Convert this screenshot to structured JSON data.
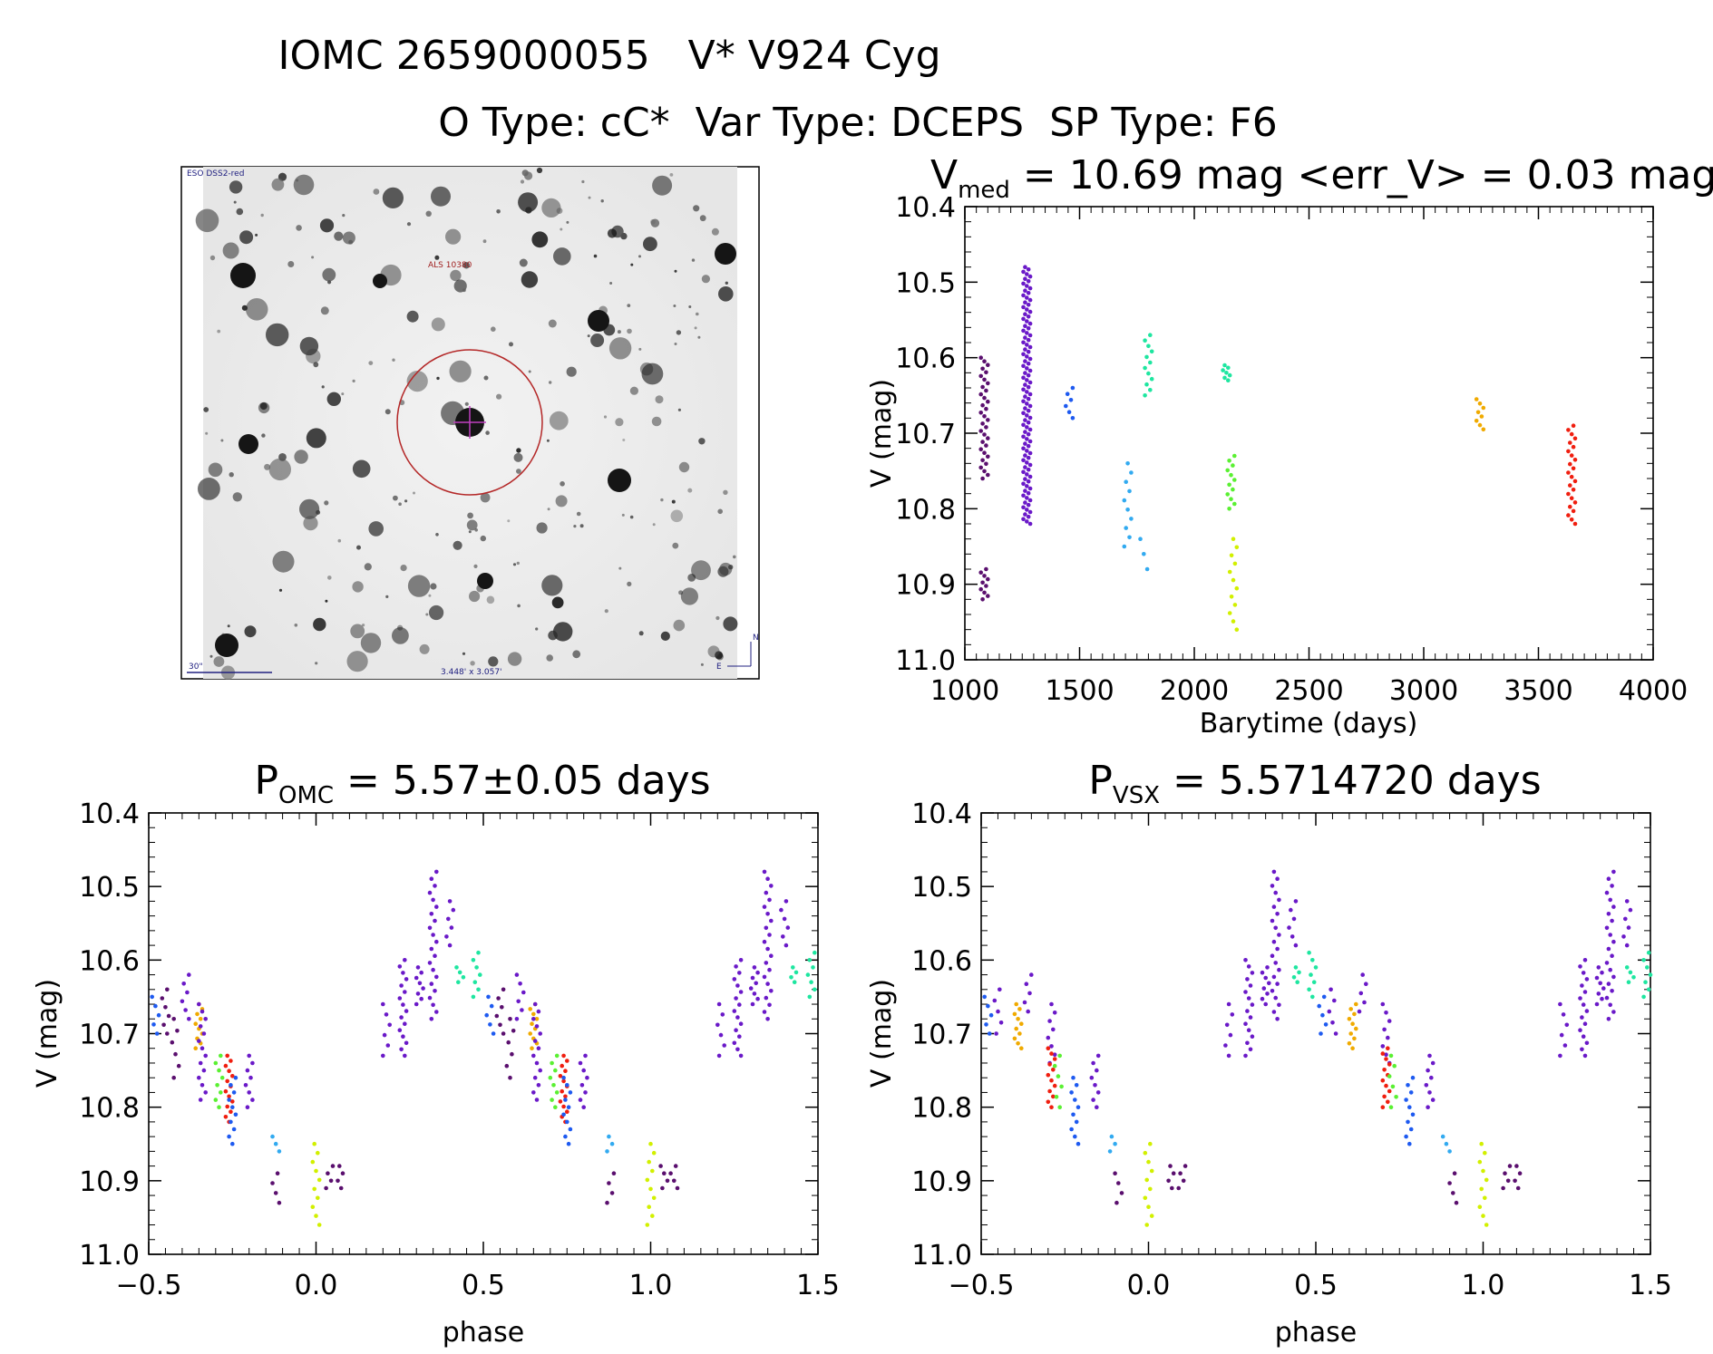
{
  "header": {
    "title_line1": "IOMC 2659000055   V* V924 Cyg",
    "title_line2": "O Type: cC*  Var Type: DCEPS  SP Type: F6"
  },
  "sky_image": {
    "survey_label": "ESO DSS2-red",
    "object_label": "ALS 10380",
    "scale_label": "30\"",
    "size_label": "3.448' x 3.057'",
    "north_label": "N",
    "east_label": "E"
  },
  "colors": {
    "c0": "#5a0f6e",
    "c1": "#6a19c8",
    "c2": "#1e5af0",
    "c3": "#32aaf0",
    "c4": "#1ee6a0",
    "c5": "#5af032",
    "c6": "#d2f000",
    "c7": "#f0aa00",
    "c8": "#f01e0f"
  },
  "chart_data": [
    {
      "type": "scatter",
      "id": "lightcurve",
      "title_main": "V",
      "title_sub": "med",
      "title_rest": " = 10.69 mag <err_V> = 0.03 mag",
      "xlabel": "Barytime (days)",
      "ylabel": "V (mag)",
      "xlim": [
        1000,
        4000
      ],
      "ylim": [
        11.0,
        10.4
      ],
      "xticks": [
        "1000",
        "1500",
        "2000",
        "2500",
        "3000",
        "3500",
        "4000"
      ],
      "xtick_values": [
        1000,
        1500,
        2000,
        2500,
        3000,
        3500,
        4000
      ],
      "yticks": [
        "10.4",
        "10.5",
        "10.6",
        "10.7",
        "10.8",
        "10.9",
        "11.0"
      ],
      "ytick_values": [
        10.4,
        10.5,
        10.6,
        10.7,
        10.8,
        10.9,
        11.0
      ],
      "groups": [
        {
          "color": "c0",
          "x": 1085,
          "ymin": 10.6,
          "ymax": 10.76,
          "n": 34
        },
        {
          "color": "c0",
          "x": 1085,
          "ymin": 10.88,
          "ymax": 10.92,
          "n": 10
        },
        {
          "color": "c1",
          "x": 1270,
          "ymin": 10.48,
          "ymax": 10.82,
          "n": 110
        },
        {
          "color": "c2",
          "x": 1455,
          "ymin": 10.64,
          "ymax": 10.68,
          "n": 6
        },
        {
          "color": "c3",
          "x": 1710,
          "ymin": 10.74,
          "ymax": 10.85,
          "n": 10
        },
        {
          "color": "c3",
          "x": 1780,
          "ymin": 10.84,
          "ymax": 10.88,
          "n": 3
        },
        {
          "color": "c4",
          "x": 1800,
          "ymin": 10.57,
          "ymax": 10.65,
          "n": 12
        },
        {
          "color": "c4",
          "x": 2140,
          "ymin": 10.61,
          "ymax": 10.63,
          "n": 7
        },
        {
          "color": "c5",
          "x": 2160,
          "ymin": 10.73,
          "ymax": 10.8,
          "n": 12
        },
        {
          "color": "c6",
          "x": 2170,
          "ymin": 10.84,
          "ymax": 10.96,
          "n": 12
        },
        {
          "color": "c7",
          "x": 3245,
          "ymin": 10.655,
          "ymax": 10.695,
          "n": 8
        },
        {
          "color": "c8",
          "x": 3645,
          "ymin": 10.69,
          "ymax": 10.82,
          "n": 24
        }
      ]
    },
    {
      "type": "scatter",
      "id": "phase_omc",
      "title_main": "P",
      "title_sub": "OMC",
      "title_rest": " = 5.57±0.05 days",
      "xlabel": "phase",
      "ylabel": "V (mag)",
      "xlim": [
        -0.5,
        1.5
      ],
      "ylim": [
        11.0,
        10.4
      ],
      "xticks": [
        "−0.5",
        "0.0",
        "0.5",
        "1.0",
        "1.5"
      ],
      "xtick_values": [
        -0.5,
        0.0,
        0.5,
        1.0,
        1.5
      ],
      "yticks": [
        "10.4",
        "10.5",
        "10.6",
        "10.7",
        "10.8",
        "10.9",
        "11.0"
      ],
      "ytick_values": [
        10.4,
        10.5,
        10.6,
        10.7,
        10.8,
        10.9,
        11.0
      ],
      "groups": [
        {
          "color": "c2",
          "x": -0.48,
          "ymin": 10.65,
          "ymax": 10.7,
          "n": 5
        },
        {
          "color": "c0",
          "x": -0.45,
          "ymin": 10.64,
          "ymax": 10.7,
          "n": 6
        },
        {
          "color": "c0",
          "x": -0.42,
          "ymin": 10.68,
          "ymax": 10.76,
          "n": 6
        },
        {
          "color": "c1",
          "x": -0.39,
          "ymin": 10.62,
          "ymax": 10.68,
          "n": 6
        },
        {
          "color": "c7",
          "x": -0.35,
          "ymin": 10.66,
          "ymax": 10.72,
          "n": 10
        },
        {
          "color": "c1",
          "x": -0.34,
          "ymin": 10.66,
          "ymax": 10.79,
          "n": 14
        },
        {
          "color": "c5",
          "x": -0.29,
          "ymin": 10.73,
          "ymax": 10.8,
          "n": 8
        },
        {
          "color": "c8",
          "x": -0.26,
          "ymin": 10.73,
          "ymax": 10.82,
          "n": 14
        },
        {
          "color": "c2",
          "x": -0.25,
          "ymin": 10.76,
          "ymax": 10.85,
          "n": 10
        },
        {
          "color": "c1",
          "x": -0.2,
          "ymin": 10.73,
          "ymax": 10.8,
          "n": 8
        },
        {
          "color": "c3",
          "x": -0.12,
          "ymin": 10.84,
          "ymax": 10.86,
          "n": 3
        },
        {
          "color": "c0",
          "x": -0.12,
          "ymin": 10.89,
          "ymax": 10.93,
          "n": 4
        },
        {
          "color": "c6",
          "x": 0.0,
          "ymin": 10.85,
          "ymax": 10.96,
          "n": 10
        },
        {
          "color": "c0",
          "x": 0.04,
          "ymin": 10.88,
          "ymax": 10.91,
          "n": 4
        },
        {
          "color": "c0",
          "x": 0.07,
          "ymin": 10.88,
          "ymax": 10.91,
          "n": 4
        },
        {
          "color": "c1",
          "x": 0.21,
          "ymin": 10.66,
          "ymax": 10.73,
          "n": 6
        },
        {
          "color": "c1",
          "x": 0.26,
          "ymin": 10.6,
          "ymax": 10.73,
          "n": 16
        },
        {
          "color": "c1",
          "x": 0.31,
          "ymin": 10.61,
          "ymax": 10.66,
          "n": 8
        },
        {
          "color": "c1",
          "x": 0.35,
          "ymin": 10.48,
          "ymax": 10.68,
          "n": 22
        },
        {
          "color": "c1",
          "x": 0.4,
          "ymin": 10.52,
          "ymax": 10.58,
          "n": 6
        },
        {
          "color": "c4",
          "x": 0.43,
          "ymin": 10.61,
          "ymax": 10.63,
          "n": 4
        },
        {
          "color": "c4",
          "x": 0.48,
          "ymin": 10.59,
          "ymax": 10.65,
          "n": 7
        },
        {
          "color": "c2",
          "x": 0.52,
          "ymin": 10.65,
          "ymax": 10.7,
          "n": 5
        },
        {
          "color": "c0",
          "x": 0.55,
          "ymin": 10.64,
          "ymax": 10.7,
          "n": 6
        },
        {
          "color": "c0",
          "x": 0.58,
          "ymin": 10.68,
          "ymax": 10.76,
          "n": 6
        },
        {
          "color": "c1",
          "x": 0.61,
          "ymin": 10.62,
          "ymax": 10.68,
          "n": 6
        },
        {
          "color": "c7",
          "x": 0.65,
          "ymin": 10.66,
          "ymax": 10.72,
          "n": 10
        },
        {
          "color": "c1",
          "x": 0.66,
          "ymin": 10.66,
          "ymax": 10.79,
          "n": 14
        },
        {
          "color": "c5",
          "x": 0.71,
          "ymin": 10.73,
          "ymax": 10.8,
          "n": 8
        },
        {
          "color": "c8",
          "x": 0.74,
          "ymin": 10.73,
          "ymax": 10.82,
          "n": 14
        },
        {
          "color": "c2",
          "x": 0.75,
          "ymin": 10.76,
          "ymax": 10.85,
          "n": 10
        },
        {
          "color": "c1",
          "x": 0.8,
          "ymin": 10.73,
          "ymax": 10.8,
          "n": 8
        },
        {
          "color": "c3",
          "x": 0.88,
          "ymin": 10.84,
          "ymax": 10.86,
          "n": 3
        },
        {
          "color": "c0",
          "x": 0.88,
          "ymin": 10.89,
          "ymax": 10.93,
          "n": 4
        },
        {
          "color": "c6",
          "x": 1.0,
          "ymin": 10.85,
          "ymax": 10.96,
          "n": 10
        },
        {
          "color": "c0",
          "x": 1.04,
          "ymin": 10.88,
          "ymax": 10.91,
          "n": 4
        },
        {
          "color": "c0",
          "x": 1.07,
          "ymin": 10.88,
          "ymax": 10.91,
          "n": 4
        },
        {
          "color": "c1",
          "x": 1.21,
          "ymin": 10.66,
          "ymax": 10.73,
          "n": 6
        },
        {
          "color": "c1",
          "x": 1.26,
          "ymin": 10.6,
          "ymax": 10.73,
          "n": 16
        },
        {
          "color": "c1",
          "x": 1.31,
          "ymin": 10.61,
          "ymax": 10.66,
          "n": 8
        },
        {
          "color": "c1",
          "x": 1.35,
          "ymin": 10.48,
          "ymax": 10.68,
          "n": 22
        },
        {
          "color": "c1",
          "x": 1.4,
          "ymin": 10.52,
          "ymax": 10.58,
          "n": 6
        },
        {
          "color": "c4",
          "x": 1.43,
          "ymin": 10.61,
          "ymax": 10.63,
          "n": 4
        },
        {
          "color": "c4",
          "x": 1.48,
          "ymin": 10.59,
          "ymax": 10.65,
          "n": 7
        }
      ]
    },
    {
      "type": "scatter",
      "id": "phase_vsx",
      "title_main": "P",
      "title_sub": "VSX",
      "title_rest": " = 5.5714720 days",
      "xlabel": "phase",
      "ylabel": "V (mag)",
      "xlim": [
        -0.5,
        1.5
      ],
      "ylim": [
        11.0,
        10.4
      ],
      "xticks": [
        "−0.5",
        "0.0",
        "0.5",
        "1.0",
        "1.5"
      ],
      "xtick_values": [
        -0.5,
        0.0,
        0.5,
        1.0,
        1.5
      ],
      "yticks": [
        "10.4",
        "10.5",
        "10.6",
        "10.7",
        "10.8",
        "10.9",
        "11.0"
      ],
      "ytick_values": [
        10.4,
        10.5,
        10.6,
        10.7,
        10.8,
        10.9,
        11.0
      ],
      "groups": [
        {
          "color": "c2",
          "x": -0.48,
          "ymin": 10.65,
          "ymax": 10.7,
          "n": 5
        },
        {
          "color": "c1",
          "x": -0.45,
          "ymin": 10.64,
          "ymax": 10.7,
          "n": 5
        },
        {
          "color": "c7",
          "x": -0.39,
          "ymin": 10.66,
          "ymax": 10.72,
          "n": 10
        },
        {
          "color": "c1",
          "x": -0.36,
          "ymin": 10.62,
          "ymax": 10.67,
          "n": 5
        },
        {
          "color": "c1",
          "x": -0.29,
          "ymin": 10.66,
          "ymax": 10.74,
          "n": 8
        },
        {
          "color": "c8",
          "x": -0.29,
          "ymin": 10.72,
          "ymax": 10.8,
          "n": 12
        },
        {
          "color": "c5",
          "x": -0.27,
          "ymin": 10.73,
          "ymax": 10.8,
          "n": 6
        },
        {
          "color": "c2",
          "x": -0.22,
          "ymin": 10.76,
          "ymax": 10.85,
          "n": 10
        },
        {
          "color": "c1",
          "x": -0.16,
          "ymin": 10.73,
          "ymax": 10.8,
          "n": 8
        },
        {
          "color": "c3",
          "x": -0.11,
          "ymin": 10.84,
          "ymax": 10.86,
          "n": 3
        },
        {
          "color": "c0",
          "x": -0.09,
          "ymin": 10.89,
          "ymax": 10.93,
          "n": 4
        },
        {
          "color": "c6",
          "x": 0.0,
          "ymin": 10.85,
          "ymax": 10.96,
          "n": 10
        },
        {
          "color": "c0",
          "x": 0.07,
          "ymin": 10.88,
          "ymax": 10.91,
          "n": 4
        },
        {
          "color": "c0",
          "x": 0.1,
          "ymin": 10.88,
          "ymax": 10.91,
          "n": 4
        },
        {
          "color": "c1",
          "x": 0.24,
          "ymin": 10.66,
          "ymax": 10.73,
          "n": 6
        },
        {
          "color": "c1",
          "x": 0.3,
          "ymin": 10.6,
          "ymax": 10.73,
          "n": 16
        },
        {
          "color": "c1",
          "x": 0.35,
          "ymin": 10.61,
          "ymax": 10.66,
          "n": 8
        },
        {
          "color": "c1",
          "x": 0.38,
          "ymin": 10.48,
          "ymax": 10.68,
          "n": 22
        },
        {
          "color": "c1",
          "x": 0.43,
          "ymin": 10.52,
          "ymax": 10.58,
          "n": 6
        },
        {
          "color": "c4",
          "x": 0.44,
          "ymin": 10.61,
          "ymax": 10.63,
          "n": 4
        },
        {
          "color": "c4",
          "x": 0.49,
          "ymin": 10.59,
          "ymax": 10.65,
          "n": 7
        },
        {
          "color": "c2",
          "x": 0.52,
          "ymin": 10.65,
          "ymax": 10.7,
          "n": 5
        },
        {
          "color": "c1",
          "x": 0.55,
          "ymin": 10.64,
          "ymax": 10.7,
          "n": 5
        },
        {
          "color": "c7",
          "x": 0.61,
          "ymin": 10.66,
          "ymax": 10.72,
          "n": 10
        },
        {
          "color": "c1",
          "x": 0.64,
          "ymin": 10.62,
          "ymax": 10.67,
          "n": 5
        },
        {
          "color": "c1",
          "x": 0.71,
          "ymin": 10.66,
          "ymax": 10.74,
          "n": 8
        },
        {
          "color": "c8",
          "x": 0.71,
          "ymin": 10.72,
          "ymax": 10.8,
          "n": 12
        },
        {
          "color": "c5",
          "x": 0.73,
          "ymin": 10.73,
          "ymax": 10.8,
          "n": 6
        },
        {
          "color": "c2",
          "x": 0.78,
          "ymin": 10.76,
          "ymax": 10.85,
          "n": 10
        },
        {
          "color": "c1",
          "x": 0.84,
          "ymin": 10.73,
          "ymax": 10.8,
          "n": 8
        },
        {
          "color": "c3",
          "x": 0.89,
          "ymin": 10.84,
          "ymax": 10.86,
          "n": 3
        },
        {
          "color": "c0",
          "x": 0.91,
          "ymin": 10.89,
          "ymax": 10.93,
          "n": 4
        },
        {
          "color": "c6",
          "x": 1.0,
          "ymin": 10.85,
          "ymax": 10.96,
          "n": 10
        },
        {
          "color": "c0",
          "x": 1.07,
          "ymin": 10.88,
          "ymax": 10.91,
          "n": 4
        },
        {
          "color": "c0",
          "x": 1.1,
          "ymin": 10.88,
          "ymax": 10.91,
          "n": 4
        },
        {
          "color": "c1",
          "x": 1.24,
          "ymin": 10.66,
          "ymax": 10.73,
          "n": 6
        },
        {
          "color": "c1",
          "x": 1.3,
          "ymin": 10.6,
          "ymax": 10.73,
          "n": 16
        },
        {
          "color": "c1",
          "x": 1.35,
          "ymin": 10.61,
          "ymax": 10.66,
          "n": 8
        },
        {
          "color": "c1",
          "x": 1.38,
          "ymin": 10.48,
          "ymax": 10.68,
          "n": 22
        },
        {
          "color": "c1",
          "x": 1.43,
          "ymin": 10.52,
          "ymax": 10.58,
          "n": 6
        },
        {
          "color": "c4",
          "x": 1.44,
          "ymin": 10.61,
          "ymax": 10.63,
          "n": 4
        },
        {
          "color": "c4",
          "x": 1.49,
          "ymin": 10.59,
          "ymax": 10.65,
          "n": 7
        }
      ]
    }
  ]
}
